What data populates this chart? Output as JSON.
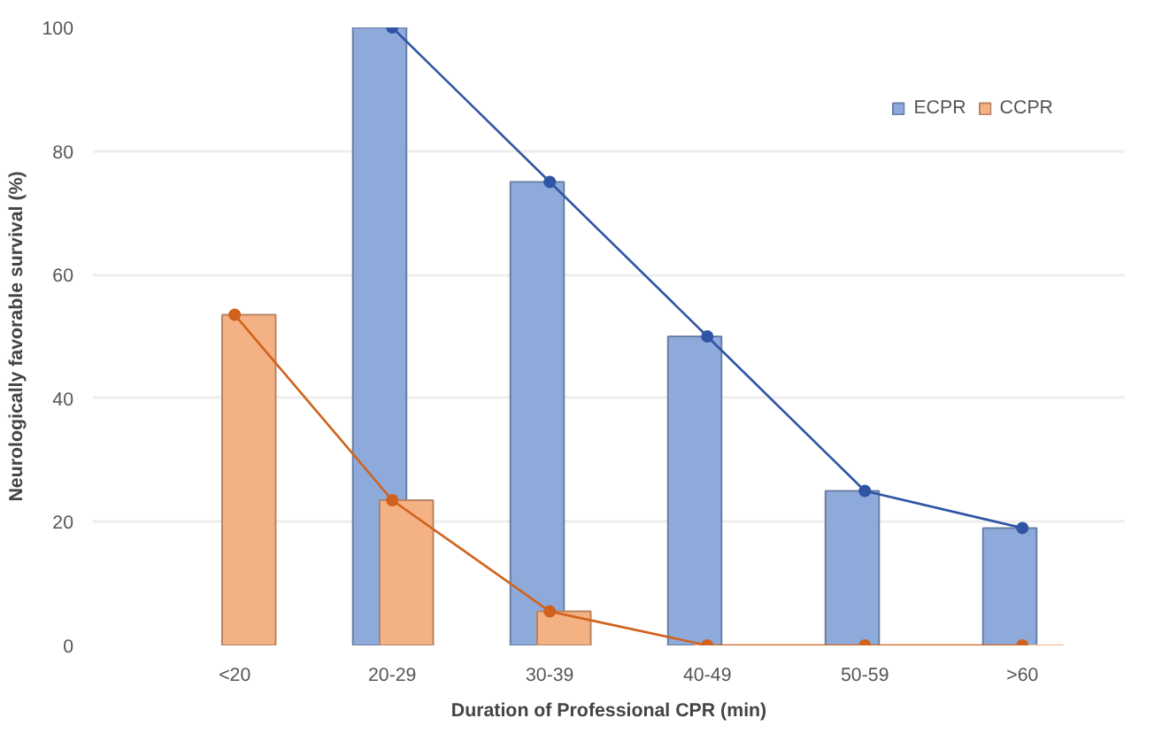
{
  "chart_data": {
    "type": "bar",
    "xlabel": "Duration of Professional CPR (min)",
    "ylabel": "Neurologically favorable survival (%)",
    "categories": [
      "<20",
      "20-29",
      "30-39",
      "40-49",
      "50-59",
      ">60"
    ],
    "series": [
      {
        "name": "ECPR",
        "color": "#8eaadb",
        "values": [
          null,
          100,
          75,
          50,
          25,
          19
        ]
      },
      {
        "name": "CCPR",
        "color": "#f4b183",
        "values": [
          53.5,
          23.5,
          5.5,
          0,
          0,
          0
        ]
      },
      {
        "type": "line",
        "color": "#2f55a4",
        "marker": "circle",
        "values": [
          null,
          100,
          75,
          50,
          25,
          19
        ]
      },
      {
        "type": "line",
        "color": "#d0631d",
        "marker": "circle",
        "values": [
          53.5,
          23.5,
          5.5,
          0,
          0,
          0
        ]
      }
    ],
    "ylim": [
      0,
      100
    ],
    "yticks": [
      0,
      20,
      40,
      60,
      80,
      100
    ],
    "grid": "y",
    "legend": "top right"
  }
}
